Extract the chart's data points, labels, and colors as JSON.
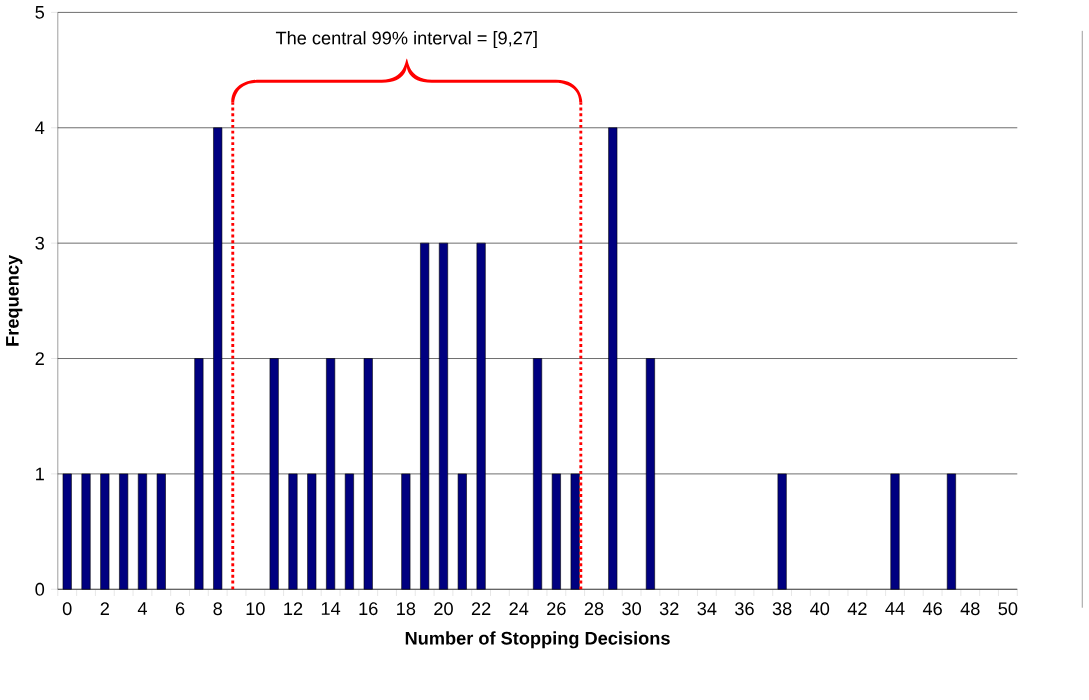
{
  "chart_data": {
    "type": "bar",
    "xlabel": "Number of Stopping Decisions",
    "ylabel": "Frequency",
    "categories": [
      "0",
      null,
      "2",
      null,
      "4",
      null,
      "6",
      null,
      "8",
      null,
      "10",
      null,
      "12",
      null,
      "14",
      null,
      "16",
      null,
      "18",
      null,
      "20",
      null,
      "22",
      null,
      "24",
      null,
      "26",
      null,
      "28",
      null,
      "30",
      null,
      "32",
      null,
      "34",
      null,
      "36",
      null,
      "38",
      null,
      "40",
      null,
      "42",
      null,
      "44",
      null,
      "46",
      null,
      "48",
      null,
      "50"
    ],
    "values": [
      1,
      1,
      1,
      1,
      1,
      1,
      0,
      2,
      4,
      0,
      0,
      2,
      1,
      1,
      2,
      1,
      2,
      0,
      1,
      3,
      3,
      1,
      3,
      0,
      0,
      2,
      1,
      1,
      0,
      4,
      0,
      2,
      0,
      0,
      0,
      0,
      0,
      0,
      1,
      0,
      0,
      0,
      0,
      0,
      1,
      0,
      0,
      1,
      0,
      0,
      0
    ],
    "color": "#000080",
    "ylim": [
      0,
      5
    ],
    "yticks": [
      0,
      1,
      2,
      3,
      4,
      5
    ],
    "grid": "y",
    "annotations": [
      "The central 99% interval = [9,27]"
    ]
  }
}
